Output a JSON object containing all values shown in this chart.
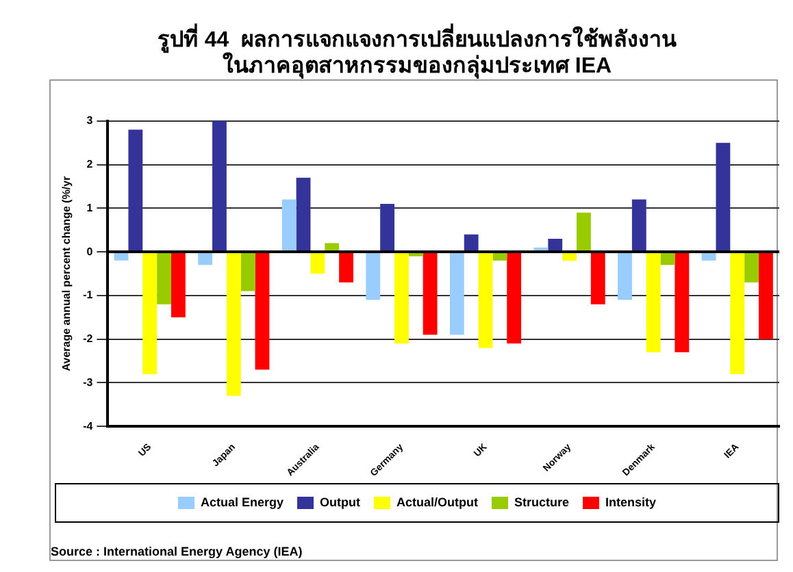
{
  "chart_data": {
    "type": "bar",
    "title": "รูปที่ 44  ผลการแจกแจงการเปลี่ยนแปลงการใช้พลังงาน\nในภาคอุตสาหกรรมของกลุ่มประเทศ IEA",
    "ylabel": "Average annual percent change (%/yr",
    "categories": [
      "US",
      "Japan",
      "Australia",
      "Germany",
      "UK",
      "Norway",
      "Denmark",
      "IEA"
    ],
    "series": [
      {
        "name": "Actual Energy",
        "color": "#99ccff",
        "values": [
          -0.2,
          -0.3,
          1.2,
          -1.1,
          -1.9,
          0.1,
          -1.1,
          -0.2
        ]
      },
      {
        "name": "Output",
        "color": "#333399",
        "values": [
          2.8,
          3.0,
          1.7,
          1.1,
          0.4,
          0.3,
          1.2,
          2.5
        ]
      },
      {
        "name": "Actual/Output",
        "color": "#ffff00",
        "values": [
          -2.8,
          -3.3,
          -0.5,
          -2.1,
          -2.2,
          -0.2,
          -2.3,
          -2.8
        ]
      },
      {
        "name": "Structure",
        "color": "#99cc00",
        "values": [
          -1.2,
          -0.9,
          0.2,
          -0.1,
          -0.2,
          0.9,
          -0.3,
          -0.7
        ]
      },
      {
        "name": "Intensity",
        "color": "#ff0000",
        "values": [
          -1.5,
          -2.7,
          -0.7,
          -1.9,
          -2.1,
          -1.2,
          -2.3,
          -2.0
        ]
      }
    ],
    "ylim": [
      -4,
      3
    ],
    "yticks": [
      -4,
      -3,
      -2,
      -1,
      0,
      1,
      2,
      3
    ],
    "grid": "y",
    "legend": "bottom",
    "annotations": [
      "Source : International Energy Agency (IEA)"
    ]
  }
}
